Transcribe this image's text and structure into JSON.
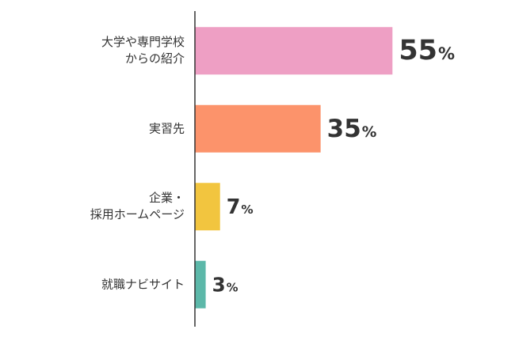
{
  "chart_data": {
    "type": "bar",
    "orientation": "horizontal",
    "categories": [
      "大学や専門学校\nからの紹介",
      "実習先",
      "企業・\n採用ホームページ",
      "就職ナビサイト"
    ],
    "values": [
      55,
      35,
      7,
      3
    ],
    "value_labels": [
      "55%",
      "35%",
      "7%",
      "3%"
    ],
    "colors": [
      "#ee9fc4",
      "#fc936b",
      "#f2c53f",
      "#5cb8a9"
    ],
    "xlim": [
      0,
      60
    ]
  }
}
